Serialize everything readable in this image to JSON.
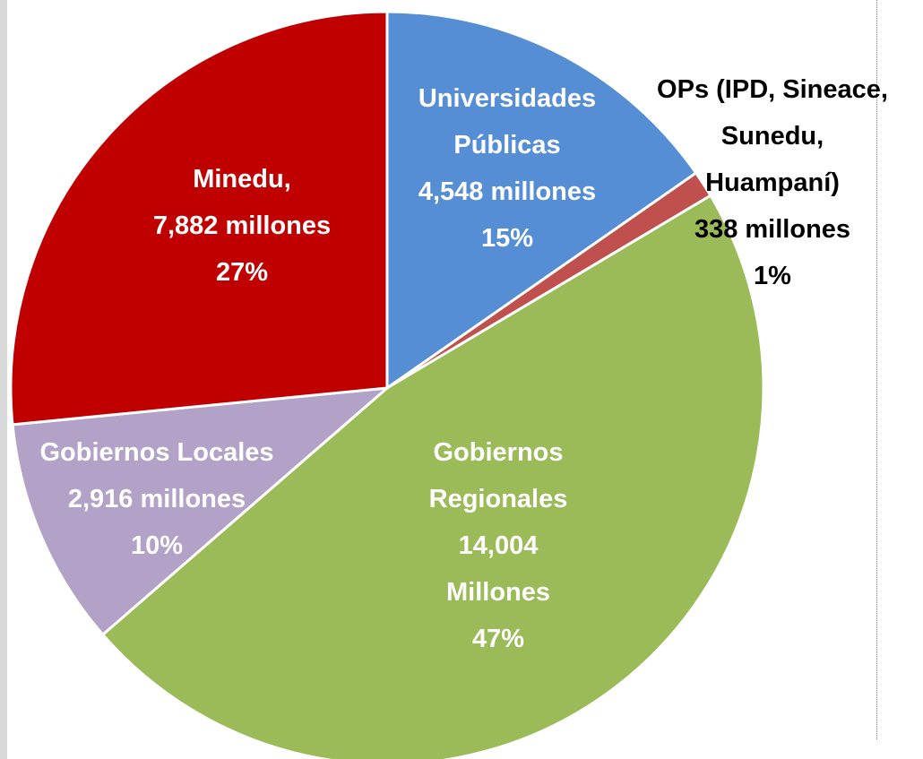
{
  "chart_data": {
    "type": "pie",
    "categories": [
      "Universidades Públicas",
      "OPs (IPD, Sineace, Sunedu, Huampaní)",
      "Gobiernos Regionales",
      "Gobiernos Locales",
      "Minedu,"
    ],
    "values": [
      4548,
      338,
      14004,
      2916,
      7882
    ],
    "value_labels": [
      "4,548 millones",
      "338 millones",
      "14,004 Millones",
      "2,916 millones",
      "7,882 millones"
    ],
    "percentages": [
      15,
      1,
      47,
      10,
      27
    ],
    "percentage_labels": [
      "15%",
      "1%",
      "47%",
      "10%",
      "27%"
    ],
    "colors": [
      "#558ed5",
      "#c0504d",
      "#9bbb59",
      "#b3a2c7",
      "#c00000"
    ]
  }
}
